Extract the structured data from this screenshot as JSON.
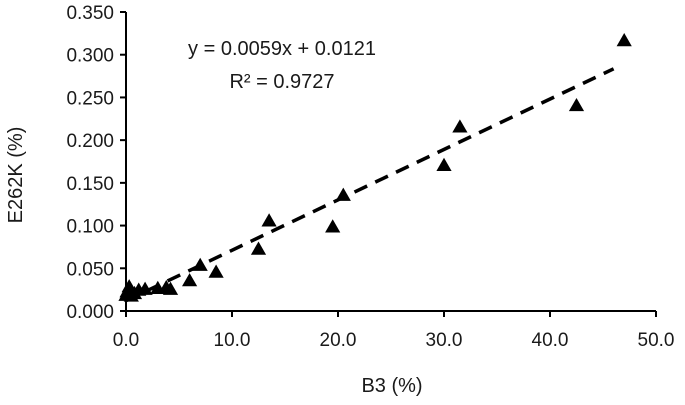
{
  "chart_data": {
    "type": "scatter",
    "xlabel": "B3 (%)",
    "ylabel": "E262K (%)",
    "xlim": [
      0,
      50
    ],
    "ylim": [
      0,
      0.35
    ],
    "x_ticks": [
      "0.0",
      "10.0",
      "20.0",
      "30.0",
      "40.0",
      "50.0"
    ],
    "x_tick_values": [
      0,
      10,
      20,
      30,
      40,
      50
    ],
    "y_ticks": [
      "0.000",
      "0.050",
      "0.100",
      "0.150",
      "0.200",
      "0.250",
      "0.300",
      "0.350"
    ],
    "y_tick_values": [
      0,
      0.05,
      0.1,
      0.15,
      0.2,
      0.25,
      0.3,
      0.35
    ],
    "grid": false,
    "marker": "triangle",
    "series": [
      {
        "points": [
          [
            0.0,
            0.018
          ],
          [
            0.1,
            0.022
          ],
          [
            0.3,
            0.028
          ],
          [
            0.5,
            0.017
          ],
          [
            0.8,
            0.02
          ],
          [
            1.2,
            0.024
          ],
          [
            1.8,
            0.025
          ],
          [
            3.0,
            0.026
          ],
          [
            3.8,
            0.027
          ],
          [
            4.2,
            0.025
          ],
          [
            6.0,
            0.035
          ],
          [
            7.0,
            0.053
          ],
          [
            8.5,
            0.045
          ],
          [
            12.5,
            0.072
          ],
          [
            13.5,
            0.105
          ],
          [
            19.5,
            0.098
          ],
          [
            20.5,
            0.135
          ],
          [
            30.0,
            0.17
          ],
          [
            31.5,
            0.215
          ],
          [
            42.5,
            0.24
          ],
          [
            47.0,
            0.316
          ]
        ]
      }
    ],
    "trendline": {
      "type": "linear",
      "slope": 0.0059,
      "intercept": 0.0121,
      "x_range": [
        0,
        46
      ],
      "style": "dashed"
    },
    "annotations": {
      "equation": "y = 0.0059x + 0.0121",
      "r2": "R² = 0.9727"
    },
    "colors": {
      "marker": "#000000",
      "axis": "#000000",
      "trendline": "#000000"
    }
  }
}
